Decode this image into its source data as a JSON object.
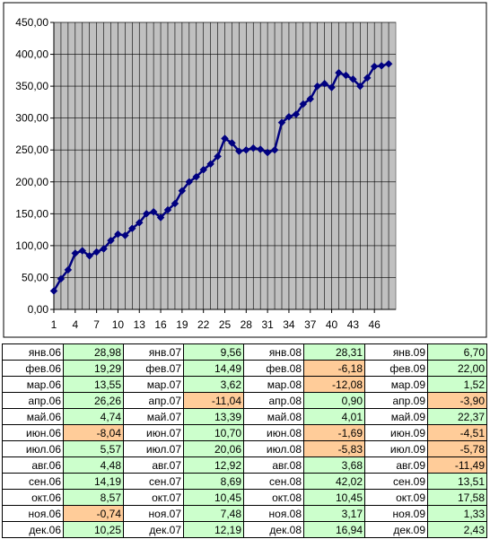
{
  "chart_data": {
    "type": "line",
    "title": "",
    "xlabel": "",
    "ylabel": "",
    "ylim": [
      0,
      450
    ],
    "y_ticks": [
      "0,00",
      "50,00",
      "100,00",
      "150,00",
      "200,00",
      "250,00",
      "300,00",
      "350,00",
      "400,00",
      "450,00"
    ],
    "x_ticks": [
      "1",
      "4",
      "7",
      "10",
      "13",
      "16",
      "19",
      "22",
      "25",
      "28",
      "31",
      "34",
      "37",
      "40",
      "43",
      "46"
    ],
    "x": [
      1,
      2,
      3,
      4,
      5,
      6,
      7,
      8,
      9,
      10,
      11,
      12,
      13,
      14,
      15,
      16,
      17,
      18,
      19,
      20,
      21,
      22,
      23,
      24,
      25,
      26,
      27,
      28,
      29,
      30,
      31,
      32,
      33,
      34,
      35,
      36,
      37,
      38,
      39,
      40,
      41,
      42,
      43,
      44,
      45,
      46,
      47,
      48
    ],
    "values": [
      29,
      48,
      62,
      88,
      92,
      84,
      90,
      95,
      108,
      118,
      116,
      127,
      136,
      150,
      153,
      144,
      156,
      166,
      186,
      200,
      208,
      219,
      228,
      240,
      268,
      261,
      248,
      250,
      253,
      251,
      246,
      250,
      293,
      302,
      306,
      322,
      330,
      350,
      354,
      348,
      371,
      367,
      361,
      350,
      363,
      381,
      382,
      385
    ],
    "grid": true,
    "plot_bg": "#c0c0c0",
    "line_color": "#000080",
    "marker": "diamond",
    "legend": "none"
  },
  "table": {
    "rows": [
      [
        [
          "янв.06",
          "28,98",
          "pos"
        ],
        [
          "янв.07",
          "9,56",
          "pos"
        ],
        [
          "янв.08",
          "28,31",
          "pos"
        ],
        [
          "янв.09",
          "6,70",
          "pos"
        ]
      ],
      [
        [
          "фев.06",
          "19,29",
          "pos"
        ],
        [
          "фев.07",
          "14,49",
          "pos"
        ],
        [
          "фев.08",
          "-6,18",
          "neg"
        ],
        [
          "фев.09",
          "22,00",
          "pos"
        ]
      ],
      [
        [
          "мар.06",
          "13,55",
          "pos"
        ],
        [
          "мар.07",
          "3,62",
          "pos"
        ],
        [
          "мар.08",
          "-12,08",
          "neg"
        ],
        [
          "мар.09",
          "1,52",
          "pos"
        ]
      ],
      [
        [
          "апр.06",
          "26,26",
          "pos"
        ],
        [
          "апр.07",
          "-11,04",
          "neg"
        ],
        [
          "апр.08",
          "0,90",
          "pos"
        ],
        [
          "апр.09",
          "-3,90",
          "neg"
        ]
      ],
      [
        [
          "май.06",
          "4,74",
          "pos"
        ],
        [
          "май.07",
          "13,39",
          "pos"
        ],
        [
          "май.08",
          "4,01",
          "pos"
        ],
        [
          "май.09",
          "22,37",
          "pos"
        ]
      ],
      [
        [
          "июн.06",
          "-8,04",
          "neg"
        ],
        [
          "июн.07",
          "10,70",
          "pos"
        ],
        [
          "июн.08",
          "-1,69",
          "neg"
        ],
        [
          "июн.09",
          "-4,51",
          "neg"
        ]
      ],
      [
        [
          "июл.06",
          "5,57",
          "pos"
        ],
        [
          "июл.07",
          "20,06",
          "pos"
        ],
        [
          "июл.08",
          "-5,83",
          "neg"
        ],
        [
          "июл.09",
          "-5,78",
          "neg"
        ]
      ],
      [
        [
          "авг.06",
          "4,48",
          "pos"
        ],
        [
          "авг.07",
          "12,92",
          "pos"
        ],
        [
          "авг.08",
          "3,68",
          "pos"
        ],
        [
          "авг.09",
          "-11,49",
          "neg"
        ]
      ],
      [
        [
          "сен.06",
          "14,19",
          "pos"
        ],
        [
          "сен.07",
          "8,69",
          "pos"
        ],
        [
          "сен.08",
          "42,02",
          "pos"
        ],
        [
          "сен.09",
          "13,51",
          "pos"
        ]
      ],
      [
        [
          "окт.06",
          "8,57",
          "pos"
        ],
        [
          "окт.07",
          "10,45",
          "pos"
        ],
        [
          "окт.08",
          "10,45",
          "pos"
        ],
        [
          "окт.09",
          "17,58",
          "pos"
        ]
      ],
      [
        [
          "ноя.06",
          "-0,74",
          "neg"
        ],
        [
          "ноя.07",
          "7,48",
          "pos"
        ],
        [
          "ноя.08",
          "3,17",
          "pos"
        ],
        [
          "ноя.09",
          "1,33",
          "pos"
        ]
      ],
      [
        [
          "дек.06",
          "10,25",
          "pos"
        ],
        [
          "дек.07",
          "12,19",
          "pos"
        ],
        [
          "дек.08",
          "16,94",
          "pos"
        ],
        [
          "дек.09",
          "2,43",
          "pos"
        ]
      ]
    ]
  }
}
